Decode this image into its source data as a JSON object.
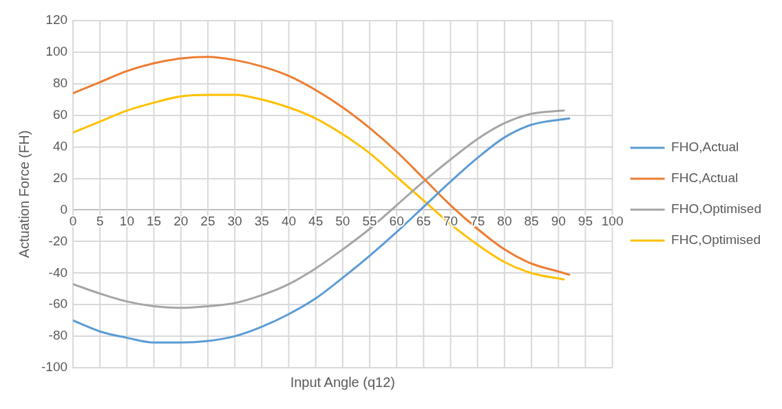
{
  "chart_data": {
    "type": "line",
    "xlabel": "Input Angle (q12)",
    "ylabel": "Actuation Force (FH)",
    "xlim": [
      0,
      100
    ],
    "xticks": [
      0,
      5,
      10,
      15,
      20,
      25,
      30,
      35,
      40,
      45,
      50,
      55,
      60,
      65,
      70,
      75,
      80,
      85,
      90,
      95,
      100
    ],
    "ylim": [
      -100,
      120
    ],
    "yticks": [
      -100,
      -80,
      -60,
      -40,
      -20,
      0,
      20,
      40,
      60,
      80,
      100,
      120
    ],
    "grid": true,
    "legend": "right",
    "marker": "none",
    "line_style": "solid",
    "series": [
      {
        "name": "FHO,Actual",
        "color": "#5b9bd5",
        "x": [
          0,
          5,
          10,
          15,
          20,
          25,
          30,
          35,
          40,
          45,
          50,
          55,
          60,
          65,
          70,
          75,
          80,
          85,
          92
        ],
        "values": [
          -70,
          -77,
          -81,
          -84,
          -84,
          -83,
          -80,
          -74,
          -66,
          -56,
          -43,
          -29,
          -14,
          2,
          18,
          33,
          46,
          54,
          58
        ]
      },
      {
        "name": "FHC,Actual",
        "color": "#ed7d31",
        "x": [
          0,
          5,
          10,
          15,
          20,
          25,
          30,
          35,
          40,
          45,
          50,
          55,
          60,
          65,
          70,
          75,
          80,
          85,
          90,
          92
        ],
        "values": [
          74,
          81,
          88,
          93,
          96,
          97,
          95,
          91,
          85,
          76,
          65,
          52,
          37,
          20,
          3,
          -12,
          -25,
          -34,
          -39,
          -41
        ]
      },
      {
        "name": "FHO,Optimised",
        "color": "#a5a5a5",
        "x": [
          0,
          5,
          10,
          15,
          20,
          25,
          30,
          35,
          40,
          45,
          50,
          55,
          60,
          65,
          70,
          75,
          80,
          85,
          91
        ],
        "values": [
          -47,
          -53,
          -58,
          -61,
          -62,
          -61,
          -59,
          -54,
          -47,
          -37,
          -25,
          -12,
          3,
          18,
          32,
          45,
          55,
          61,
          63
        ]
      },
      {
        "name": "FHC,Optimised",
        "color": "#ffc000",
        "x": [
          0,
          5,
          10,
          15,
          20,
          25,
          30,
          35,
          40,
          45,
          50,
          55,
          60,
          65,
          70,
          75,
          80,
          85,
          91
        ],
        "values": [
          49,
          56,
          63,
          68,
          72,
          73,
          73,
          70,
          65,
          58,
          48,
          36,
          21,
          6,
          -9,
          -22,
          -33,
          -40,
          -44
        ]
      }
    ]
  }
}
